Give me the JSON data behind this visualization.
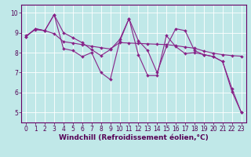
{
  "xlabel": "Windchill (Refroidissement éolien,°C)",
  "xlim_min": -0.5,
  "xlim_max": 23.5,
  "ylim_min": 4.5,
  "ylim_max": 10.4,
  "yticks": [
    5,
    6,
    7,
    8,
    9,
    10
  ],
  "xticks": [
    0,
    1,
    2,
    3,
    4,
    5,
    6,
    7,
    8,
    9,
    10,
    11,
    12,
    13,
    14,
    15,
    16,
    17,
    18,
    19,
    20,
    21,
    22,
    23
  ],
  "background_color": "#c0e8e8",
  "line_color": "#882288",
  "series1": [
    8.8,
    9.2,
    9.1,
    9.9,
    8.2,
    8.1,
    7.8,
    8.0,
    7.0,
    6.65,
    8.55,
    9.7,
    8.6,
    8.1,
    7.0,
    8.3,
    9.2,
    9.1,
    8.1,
    7.9,
    7.8,
    7.55,
    6.2,
    5.0
  ],
  "series2": [
    8.85,
    9.15,
    9.1,
    8.95,
    8.55,
    8.48,
    8.4,
    8.32,
    8.25,
    8.18,
    8.5,
    8.48,
    8.46,
    8.44,
    8.42,
    8.4,
    8.35,
    8.28,
    8.22,
    8.08,
    7.97,
    7.9,
    7.85,
    7.82
  ],
  "series3": [
    8.8,
    9.2,
    9.1,
    9.9,
    9.0,
    8.75,
    8.5,
    8.15,
    7.85,
    8.15,
    8.65,
    9.7,
    7.9,
    6.85,
    6.85,
    8.85,
    8.3,
    7.95,
    8.0,
    7.9,
    7.8,
    7.55,
    6.05,
    5.0
  ],
  "grid_color": "#ffffff",
  "tick_fontsize": 5.5,
  "xlabel_fontsize": 6.5,
  "line_width": 0.8,
  "marker_size": 2.0
}
